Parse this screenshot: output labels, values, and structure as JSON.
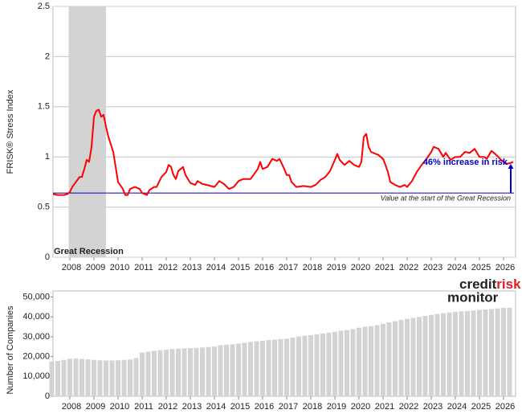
{
  "chart_data": [
    {
      "type": "line",
      "y_label": "FRISK® Stress Index",
      "x": [
        2007.3,
        2007.5,
        2007.75,
        2007.9,
        2008.0,
        2008.1,
        2008.25,
        2008.4,
        2008.5,
        2008.6,
        2008.7,
        2008.8,
        2008.9,
        2009.0,
        2009.1,
        2009.2,
        2009.3,
        2009.4,
        2009.5,
        2009.6,
        2009.8,
        2009.9,
        2010.0,
        2010.2,
        2010.3,
        2010.4,
        2010.5,
        2010.7,
        2010.9,
        2011.0,
        2011.2,
        2011.3,
        2011.5,
        2011.6,
        2011.8,
        2012.0,
        2012.1,
        2012.2,
        2012.3,
        2012.4,
        2012.5,
        2012.7,
        2012.8,
        2013.0,
        2013.2,
        2013.3,
        2013.5,
        2013.7,
        2014.0,
        2014.2,
        2014.4,
        2014.6,
        2014.8,
        2015.0,
        2015.2,
        2015.5,
        2015.8,
        2015.9,
        2016.0,
        2016.2,
        2016.4,
        2016.6,
        2016.7,
        2016.9,
        2017.0,
        2017.1,
        2017.2,
        2017.4,
        2017.7,
        2018.0,
        2018.2,
        2018.4,
        2018.6,
        2018.8,
        2019.0,
        2019.1,
        2019.2,
        2019.4,
        2019.6,
        2019.8,
        2020.0,
        2020.1,
        2020.2,
        2020.3,
        2020.4,
        2020.5,
        2020.8,
        2021.0,
        2021.1,
        2021.2,
        2021.3,
        2021.5,
        2021.7,
        2021.9,
        2022.0,
        2022.2,
        2022.4,
        2022.6,
        2022.8,
        2023.0,
        2023.1,
        2023.3,
        2023.5,
        2023.6,
        2023.8,
        2024.0,
        2024.2,
        2024.4,
        2024.6,
        2024.8,
        2025.0,
        2025.2,
        2025.3,
        2025.5,
        2025.7,
        2025.9,
        2026.1,
        2026.3,
        2026.4
      ],
      "values": [
        0.63,
        0.62,
        0.62,
        0.63,
        0.65,
        0.7,
        0.75,
        0.8,
        0.8,
        0.88,
        0.97,
        0.95,
        1.1,
        1.4,
        1.46,
        1.47,
        1.4,
        1.42,
        1.3,
        1.2,
        1.05,
        0.9,
        0.75,
        0.68,
        0.62,
        0.62,
        0.68,
        0.7,
        0.68,
        0.64,
        0.62,
        0.67,
        0.7,
        0.7,
        0.8,
        0.85,
        0.92,
        0.9,
        0.82,
        0.78,
        0.86,
        0.9,
        0.82,
        0.74,
        0.72,
        0.76,
        0.73,
        0.72,
        0.7,
        0.76,
        0.73,
        0.68,
        0.7,
        0.76,
        0.78,
        0.78,
        0.88,
        0.95,
        0.88,
        0.9,
        0.98,
        0.96,
        0.98,
        0.88,
        0.82,
        0.82,
        0.75,
        0.7,
        0.71,
        0.7,
        0.72,
        0.77,
        0.8,
        0.86,
        0.97,
        1.03,
        0.97,
        0.92,
        0.96,
        0.92,
        0.9,
        0.95,
        1.2,
        1.23,
        1.1,
        1.05,
        1.02,
        0.98,
        0.92,
        0.85,
        0.75,
        0.72,
        0.7,
        0.72,
        0.7,
        0.76,
        0.85,
        0.92,
        0.98,
        1.05,
        1.1,
        1.08,
        1.0,
        1.04,
        0.97,
        1.0,
        1.0,
        1.05,
        1.04,
        1.08,
        1.0,
        1.0,
        0.98,
        1.06,
        1.02,
        0.97,
        0.93,
        0.94,
        0.95
      ],
      "color": "#ff0000",
      "xlim": [
        2007.3,
        2026.5
      ],
      "xticks": [
        2008,
        2009,
        2010,
        2011,
        2012,
        2013,
        2014,
        2015,
        2016,
        2017,
        2018,
        2019,
        2020,
        2021,
        2022,
        2023,
        2024,
        2025,
        2026
      ],
      "ylim": [
        0,
        2.5
      ],
      "yticks": [
        0,
        0.5,
        1,
        1.5,
        2,
        2.5
      ],
      "grid": true,
      "shade": {
        "x": [
          2007.95,
          2009.5
        ],
        "color": "#d3d3d3",
        "label": "Great Recession"
      },
      "baseline": {
        "value": 0.64,
        "color": "#0000cc",
        "label": "Value at the start of the Great Recession"
      },
      "arrow": {
        "x": 2026.3,
        "from": 0.64,
        "to": 0.93,
        "label": "46% increase in risk"
      }
    },
    {
      "type": "bar",
      "y_label": "Number of Companies",
      "x": [
        2007.25,
        2007.5,
        2007.75,
        2008,
        2008.25,
        2008.5,
        2008.75,
        2009,
        2009.25,
        2009.5,
        2009.75,
        2010,
        2010.25,
        2010.5,
        2010.75,
        2011,
        2011.25,
        2011.5,
        2011.75,
        2012,
        2012.25,
        2012.5,
        2012.75,
        2013,
        2013.25,
        2013.5,
        2013.75,
        2014,
        2014.25,
        2014.5,
        2014.75,
        2015,
        2015.25,
        2015.5,
        2015.75,
        2016,
        2016.25,
        2016.5,
        2016.75,
        2017,
        2017.25,
        2017.5,
        2017.75,
        2018,
        2018.25,
        2018.5,
        2018.75,
        2019,
        2019.25,
        2019.5,
        2019.75,
        2020,
        2020.25,
        2020.5,
        2020.75,
        2021,
        2021.25,
        2021.5,
        2021.75,
        2022,
        2022.25,
        2022.5,
        2022.75,
        2023,
        2023.25,
        2023.5,
        2023.75,
        2024,
        2024.25,
        2024.5,
        2024.75,
        2025,
        2025.25,
        2025.5,
        2025.75,
        2026,
        2026.25
      ],
      "values": [
        17500,
        17800,
        18300,
        18900,
        19000,
        18800,
        18600,
        18300,
        18100,
        18000,
        18000,
        18100,
        18300,
        18500,
        19300,
        22000,
        22500,
        22900,
        23200,
        23500,
        23800,
        24000,
        24100,
        24200,
        24400,
        24600,
        24800,
        25000,
        25700,
        26000,
        26200,
        26500,
        27000,
        27400,
        27700,
        28000,
        28300,
        28500,
        28800,
        29000,
        29600,
        30100,
        30500,
        30800,
        31200,
        31600,
        32000,
        32500,
        33000,
        33300,
        33800,
        34500,
        35000,
        35300,
        35800,
        36500,
        37200,
        37800,
        38500,
        39000,
        39500,
        40000,
        40500,
        41000,
        41400,
        41800,
        42200,
        42500,
        42800,
        43000,
        43200,
        43500,
        43700,
        43900,
        44200,
        44500,
        44600
      ],
      "color": "#d3d3d3",
      "xlim": [
        2007.3,
        2026.5
      ],
      "xticks": [
        2008,
        2009,
        2010,
        2011,
        2012,
        2013,
        2014,
        2015,
        2016,
        2017,
        2018,
        2019,
        2020,
        2021,
        2022,
        2023,
        2024,
        2025,
        2026
      ],
      "ylim": [
        0,
        53000
      ],
      "yticks": [
        0,
        {
          "value": 10000,
          "label": "10,000"
        },
        {
          "value": 20000,
          "label": "20,000"
        },
        {
          "value": 30000,
          "label": "30,000"
        },
        {
          "value": 40000,
          "label": "40,000"
        },
        {
          "value": 50000,
          "label": "50,000"
        }
      ],
      "grid": false
    }
  ],
  "logo": {
    "credit": "credit",
    "risk": "risk",
    "monitor": "monitor"
  }
}
